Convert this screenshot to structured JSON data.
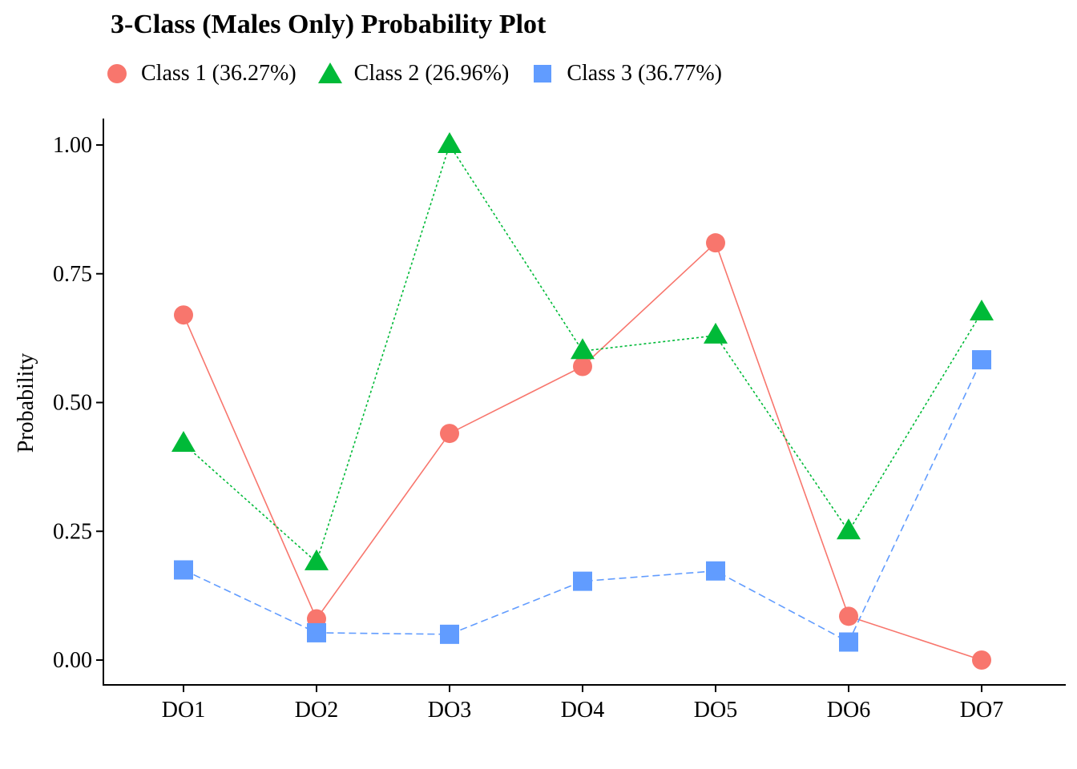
{
  "chart_data": {
    "type": "line",
    "title": "3-Class (Males Only) Probability Plot",
    "xlabel": "",
    "ylabel": "Probability",
    "categories": [
      "DO1",
      "DO2",
      "DO3",
      "DO4",
      "DO5",
      "DO6",
      "DO7"
    ],
    "ylim": [
      -0.05,
      1.05
    ],
    "yticks": [
      0.0,
      0.25,
      0.5,
      0.75,
      1.0
    ],
    "ytick_labels": [
      "0.00",
      "0.25",
      "0.50",
      "0.75",
      "1.00"
    ],
    "grid": false,
    "legend_position": "top-left",
    "series": [
      {
        "name": "Class 1 (36.27%)",
        "marker": "circle",
        "linestyle": "solid",
        "color": "#F8766D",
        "values": [
          0.67,
          0.08,
          0.44,
          0.57,
          0.81,
          0.085,
          0.0
        ]
      },
      {
        "name": "Class 2 (26.96%)",
        "marker": "triangle",
        "linestyle": "dotted",
        "color": "#00BA38",
        "values": [
          0.42,
          0.19,
          1.0,
          0.6,
          0.63,
          0.25,
          0.675
        ]
      },
      {
        "name": "Class 3 (36.77%)",
        "marker": "square",
        "linestyle": "dashed",
        "color": "#619CFF",
        "values": [
          0.175,
          0.053,
          0.05,
          0.153,
          0.173,
          0.035,
          0.583
        ]
      }
    ]
  }
}
